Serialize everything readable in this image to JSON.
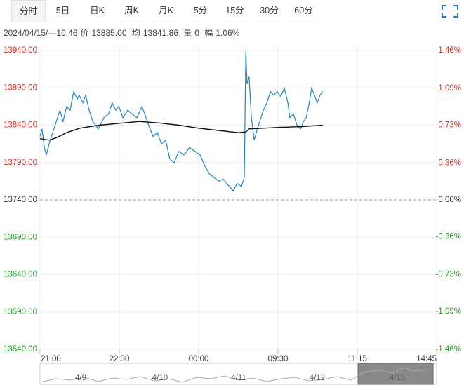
{
  "tabs": [
    "分时",
    "5日",
    "日K",
    "周K",
    "月K",
    "5分",
    "15分",
    "30分",
    "60分"
  ],
  "selected_tab": 0,
  "info": {
    "datetime": "2024/04/15/—10:46",
    "price_label": "价",
    "price": "13885.00",
    "avg_label": "均",
    "avg": "13841.86",
    "volume_label": "量",
    "volume": "0",
    "range_label": "幅",
    "range": "1.06%"
  },
  "chart_data": {
    "type": "line",
    "xlim": [
      0,
      100
    ],
    "xticks": [
      {
        "value": 0,
        "label": "21:00"
      },
      {
        "value": 20,
        "label": "22:30"
      },
      {
        "value": 40,
        "label": "00:00"
      },
      {
        "value": 60,
        "label": "09:30"
      },
      {
        "value": 80,
        "label": "11:15"
      },
      {
        "value": 100,
        "label": "14:45"
      }
    ],
    "ylim": [
      13540,
      13940
    ],
    "yticks": [
      {
        "value": 13940,
        "label": "13940.00"
      },
      {
        "value": 13890,
        "label": "13890.00"
      },
      {
        "value": 13840,
        "label": "13840.00"
      },
      {
        "value": 13790,
        "label": "13790.00"
      },
      {
        "value": 13740,
        "label": "13740.00"
      },
      {
        "value": 13690,
        "label": "13690.00"
      },
      {
        "value": 13640,
        "label": "13640.00"
      },
      {
        "value": 13590,
        "label": "13590.00"
      },
      {
        "value": 13540,
        "label": "13540.00"
      }
    ],
    "y2lim": [
      -1.46,
      1.46
    ],
    "y2ticks": [
      {
        "value": 1.46,
        "label": "1.46%"
      },
      {
        "value": 1.09,
        "label": "1.09%"
      },
      {
        "value": 0.73,
        "label": "0.73%"
      },
      {
        "value": 0.36,
        "label": "0.36%"
      },
      {
        "value": 0,
        "label": "0.00%"
      },
      {
        "value": -0.36,
        "label": "-0.36%"
      },
      {
        "value": -0.73,
        "label": "-0.73%"
      },
      {
        "value": -1.09,
        "label": "-1.09%"
      },
      {
        "value": -1.46,
        "label": "-1.46%"
      }
    ],
    "grid": true,
    "series": [
      {
        "color": "#1f86c8",
        "x": [
          0,
          0.5,
          1.1,
          1.6,
          2.3,
          3.2,
          4.1,
          5.0,
          5.8,
          6.7,
          7.6,
          8.5,
          9.4,
          9.9,
          10.8,
          11.5,
          12.4,
          13.3,
          14.7,
          16.1,
          17.3,
          18.2,
          19.1,
          19.9,
          20.9,
          22.1,
          23.2,
          24.4,
          25.7,
          26.4,
          27.4,
          28.5,
          29.6,
          30.6,
          31.7,
          32.7,
          33.8,
          35.0,
          36.3,
          37.7,
          39.1,
          40.4,
          41.6,
          42.7,
          43.9,
          45.1,
          46.2,
          47.4,
          48.7,
          49.7,
          50.8,
          51.5,
          51.9,
          52.2,
          52.7,
          53.3,
          54.0,
          54.8,
          55.4,
          56.3,
          57.2,
          58.1,
          58.9,
          59.8,
          60.7,
          61.6,
          62.5,
          63.0,
          63.9,
          64.8,
          65.7,
          66.4,
          67.1,
          67.9,
          68.5,
          69.2,
          69.9,
          70.6,
          71.3
        ],
        "values": [
          13825,
          13835,
          13810,
          13800,
          13815,
          13830,
          13845,
          13860,
          13845,
          13865,
          13860,
          13885,
          13875,
          13880,
          13870,
          13880,
          13860,
          13845,
          13835,
          13850,
          13855,
          13870,
          13860,
          13865,
          13850,
          13860,
          13855,
          13850,
          13865,
          13855,
          13840,
          13825,
          13830,
          13815,
          13820,
          13795,
          13790,
          13805,
          13800,
          13810,
          13805,
          13800,
          13785,
          13775,
          13770,
          13765,
          13768,
          13760,
          13752,
          13762,
          13758,
          13770,
          13940,
          13895,
          13905,
          13850,
          13820,
          13835,
          13845,
          13860,
          13870,
          13885,
          13880,
          13885,
          13878,
          13890,
          13870,
          13850,
          13855,
          13840,
          13835,
          13845,
          13850,
          13870,
          13890,
          13880,
          13870,
          13880,
          13885
        ]
      },
      {
        "color": "#111111",
        "x": [
          0,
          2.3,
          4.0,
          6.7,
          10,
          15,
          25,
          30,
          35,
          40,
          45,
          50,
          51.9,
          52.7,
          60,
          66,
          71.3
        ],
        "values": [
          13822,
          13820,
          13823,
          13830,
          13836,
          13840,
          13845,
          13843,
          13840,
          13836,
          13833,
          13830,
          13831,
          13835,
          13837,
          13838,
          13840
        ]
      }
    ]
  },
  "navigator": {
    "labels": [
      "4/9",
      "4/10",
      "4/11",
      "4/12",
      "4/15"
    ]
  }
}
